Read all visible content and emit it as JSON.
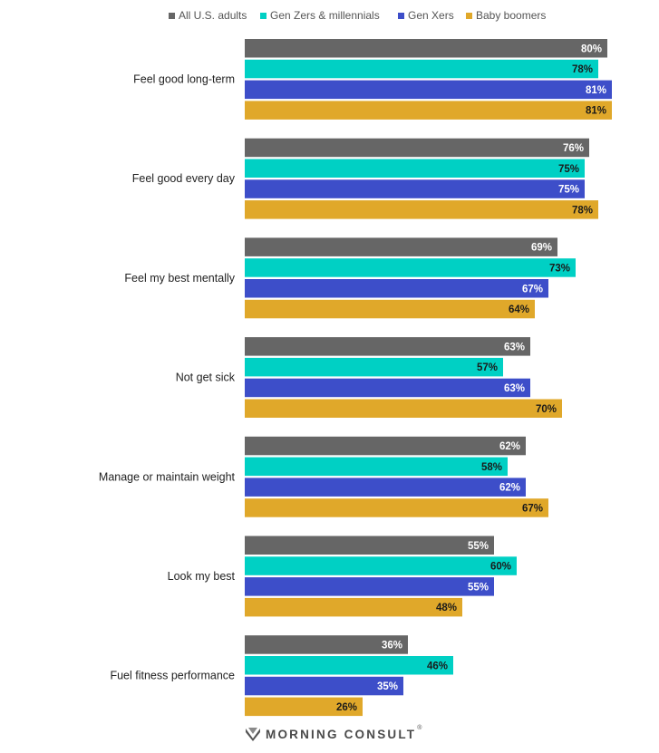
{
  "chart_data": {
    "type": "bar",
    "orientation": "horizontal",
    "categories": [
      "Feel good long-term",
      "Feel good every day",
      "Feel my best mentally",
      "Not get sick",
      "Manage or maintain weight",
      "Look my best",
      "Fuel fitness performance"
    ],
    "series": [
      {
        "name": "All U.S. adults",
        "color": "#666666",
        "label_color": "#ffffff",
        "values": [
          80,
          76,
          69,
          63,
          62,
          55,
          36
        ]
      },
      {
        "name": "Gen Zers & millennials",
        "color": "#00d0c4",
        "label_color": "#1a1a1a",
        "values": [
          78,
          75,
          73,
          57,
          58,
          60,
          46
        ]
      },
      {
        "name": "Gen Xers",
        "color": "#3d4ec9",
        "label_color": "#ffffff",
        "values": [
          81,
          75,
          67,
          63,
          62,
          55,
          35
        ]
      },
      {
        "name": "Baby boomers",
        "color": "#e0a82a",
        "label_color": "#1a1a1a",
        "values": [
          81,
          78,
          64,
          70,
          67,
          48,
          26
        ]
      }
    ],
    "value_suffix": "%",
    "xlim": [
      0,
      100
    ],
    "grid": false,
    "legend": "top-center"
  },
  "footer": {
    "brand": "MORNING CONSULT",
    "trademark": "®"
  }
}
